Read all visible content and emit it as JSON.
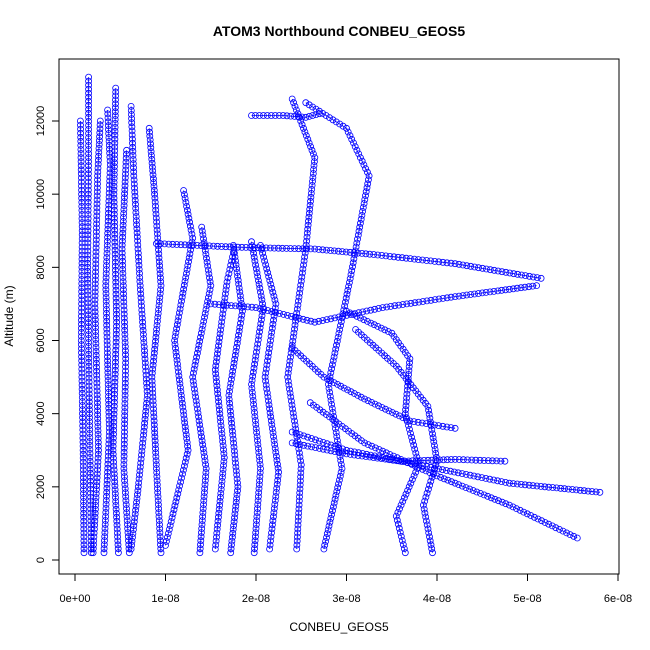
{
  "chart_data": {
    "type": "scatter",
    "title": "ATOM3 Northbound CONBEU_GEOS5",
    "xlabel": "CONBEU_GEOS5",
    "ylabel": "Altitude (m)",
    "xlim": [
      0,
      6e-08
    ],
    "ylim": [
      0,
      13000
    ],
    "x_ticks": [
      0,
      1e-08,
      2e-08,
      3e-08,
      4e-08,
      5e-08,
      6e-08
    ],
    "x_tick_labels": [
      "0e+00",
      "1e-08",
      "2e-08",
      "3e-08",
      "4e-08",
      "5e-08",
      "6e-08"
    ],
    "y_ticks": [
      0,
      2000,
      4000,
      6000,
      8000,
      10000,
      12000
    ],
    "y_tick_labels": [
      "0",
      "2000",
      "4000",
      "6000",
      "8000",
      "10000",
      "12000"
    ],
    "grid": false,
    "marker": "open-circle",
    "series": [
      {
        "color": "#0000ff",
        "profiles": [
          [
            [
              1e-09,
              200
            ],
            [
              9e-10,
              3000
            ],
            [
              7e-10,
              6000
            ],
            [
              8e-10,
              9000
            ],
            [
              6e-10,
              12000
            ]
          ],
          [
            [
              1.8e-09,
              200
            ],
            [
              1.6e-09,
              4000
            ],
            [
              1.4e-09,
              8000
            ],
            [
              1.5e-09,
              11000
            ],
            [
              1.5e-09,
              13200
            ]
          ],
          [
            [
              2e-09,
              200
            ],
            [
              2.6e-09,
              3000
            ],
            [
              2.2e-09,
              7000
            ],
            [
              2.5e-09,
              10500
            ],
            [
              2.8e-09,
              12000
            ]
          ],
          [
            [
              3.2e-09,
              200
            ],
            [
              3.8e-09,
              3500
            ],
            [
              3.4e-09,
              7500
            ],
            [
              3.9e-09,
              10800
            ],
            [
              3.6e-09,
              12300
            ]
          ],
          [
            [
              4.8e-09,
              200
            ],
            [
              4.2e-09,
              3000
            ],
            [
              4.6e-09,
              6500
            ],
            [
              4.3e-09,
              10000
            ],
            [
              4.5e-09,
              12900
            ]
          ],
          [
            [
              6e-09,
              200
            ],
            [
              5.4e-09,
              2500
            ],
            [
              5.6e-09,
              5500
            ],
            [
              5.2e-09,
              8500
            ],
            [
              5.7e-09,
              11200
            ]
          ],
          [
            [
              6.2e-09,
              300
            ],
            [
              7e-09,
              2000
            ],
            [
              8e-09,
              4500
            ],
            [
              7.2e-09,
              7500
            ],
            [
              6.5e-09,
              10500
            ],
            [
              6.2e-09,
              12400
            ]
          ],
          [
            [
              9.5e-09,
              200
            ],
            [
              9e-09,
              2500
            ],
            [
              8.5e-09,
              5000
            ],
            [
              9.5e-09,
              7500
            ],
            [
              8.8e-09,
              10000
            ],
            [
              8.2e-09,
              11800
            ]
          ],
          [
            [
              1e-08,
              400
            ],
            [
              1.25e-08,
              3000
            ],
            [
              1.1e-08,
              6000
            ],
            [
              1.3e-08,
              8800
            ],
            [
              1.2e-08,
              10100
            ]
          ],
          [
            [
              1.38e-08,
              200
            ],
            [
              1.45e-08,
              2500
            ],
            [
              1.3e-08,
              5000
            ],
            [
              1.5e-08,
              7500
            ],
            [
              1.4e-08,
              9100
            ]
          ],
          [
            [
              1.55e-08,
              300
            ],
            [
              1.65e-08,
              2800
            ],
            [
              1.55e-08,
              5200
            ],
            [
              1.68e-08,
              7600
            ],
            [
              1.75e-08,
              8400
            ]
          ],
          [
            [
              1.72e-08,
              200
            ],
            [
              1.8e-08,
              2000
            ],
            [
              1.7e-08,
              4500
            ],
            [
              1.85e-08,
              6800
            ],
            [
              1.75e-08,
              8600
            ]
          ],
          [
            [
              1.98e-08,
              200
            ],
            [
              2.05e-08,
              2500
            ],
            [
              1.95e-08,
              4800
            ],
            [
              2.08e-08,
              6900
            ],
            [
              1.95e-08,
              8700
            ]
          ],
          [
            [
              2.15e-08,
              300
            ],
            [
              2.25e-08,
              2400
            ],
            [
              2.1e-08,
              5000
            ],
            [
              2.22e-08,
              7000
            ],
            [
              2.05e-08,
              8600
            ]
          ],
          [
            [
              2.45e-08,
              300
            ],
            [
              2.5e-08,
              2600
            ],
            [
              2.35e-08,
              5000
            ],
            [
              2.55e-08,
              8500
            ],
            [
              2.65e-08,
              11000
            ],
            [
              2.4e-08,
              12600
            ]
          ],
          [
            [
              2.75e-08,
              300
            ],
            [
              2.95e-08,
              2500
            ],
            [
              2.8e-08,
              4800
            ],
            [
              3.05e-08,
              7800
            ],
            [
              3.25e-08,
              10500
            ],
            [
              3e-08,
              11800
            ],
            [
              2.55e-08,
              12500
            ]
          ],
          [
            [
              3.65e-08,
              200
            ],
            [
              3.55e-08,
              1200
            ],
            [
              3.8e-08,
              2600
            ],
            [
              3.65e-08,
              4000
            ],
            [
              3.7e-08,
              5500
            ],
            [
              3.5e-08,
              6200
            ],
            [
              3e-08,
              6800
            ]
          ],
          [
            [
              3.95e-08,
              200
            ],
            [
              3.85e-08,
              1500
            ],
            [
              4e-08,
              2700
            ],
            [
              3.9e-08,
              4200
            ],
            [
              3.55e-08,
              5300
            ],
            [
              3.1e-08,
              6300
            ]
          ],
          [
            [
              5.55e-08,
              600
            ],
            [
              4.8e-08,
              1500
            ],
            [
              4e-08,
              2300
            ],
            [
              3.2e-08,
              3200
            ],
            [
              2.6e-08,
              4300
            ]
          ],
          [
            [
              5.8e-08,
              1850
            ],
            [
              4.8e-08,
              2100
            ],
            [
              3.8e-08,
              2600
            ],
            [
              3e-08,
              3000
            ],
            [
              2.4e-08,
              3500
            ]
          ],
          [
            [
              5.15e-08,
              7700
            ],
            [
              4.2e-08,
              8100
            ],
            [
              3.3e-08,
              8350
            ],
            [
              2.65e-08,
              8500
            ],
            [
              1.8e-08,
              8550
            ],
            [
              9e-09,
              8650
            ]
          ],
          [
            [
              5.1e-08,
              7500
            ],
            [
              4.2e-08,
              7200
            ],
            [
              3.4e-08,
              6900
            ],
            [
              2.65e-08,
              6500
            ],
            [
              2e-08,
              6900
            ],
            [
              1.5e-08,
              7000
            ]
          ],
          [
            [
              2.7e-08,
              12200
            ],
            [
              2.55e-08,
              12100
            ],
            [
              2.3e-08,
              12150
            ],
            [
              1.95e-08,
              12150
            ]
          ],
          [
            [
              4.75e-08,
              2700
            ],
            [
              4.2e-08,
              2750
            ],
            [
              3.6e-08,
              2700
            ],
            [
              3e-08,
              2900
            ],
            [
              2.4e-08,
              3200
            ]
          ],
          [
            [
              4.2e-08,
              3600
            ],
            [
              3.7e-08,
              3800
            ],
            [
              3.2e-08,
              4400
            ],
            [
              2.75e-08,
              5000
            ],
            [
              2.4e-08,
              5800
            ]
          ]
        ]
      }
    ]
  }
}
